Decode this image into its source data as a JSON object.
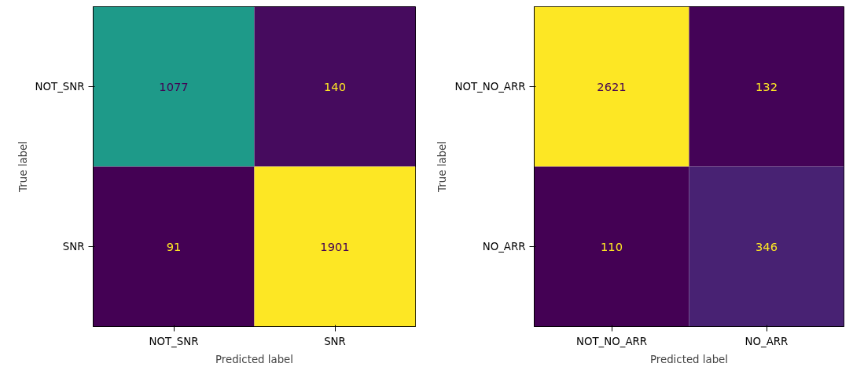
{
  "chart_data": [
    {
      "type": "heatmap",
      "xlabel": "Predicted label",
      "ylabel": "True label",
      "data_labels": true,
      "categories": [
        "NOT_SNR",
        "SNR"
      ],
      "y_categories": [
        "NOT_SNR",
        "SNR"
      ],
      "cells": [
        [
          1077,
          140
        ],
        [
          91,
          1901
        ]
      ]
    },
    {
      "type": "heatmap",
      "xlabel": "Predicted label",
      "ylabel": "True label",
      "data_labels": true,
      "categories": [
        "NOT_NO_ARR",
        "NO_ARR"
      ],
      "y_categories": [
        "NOT_NO_ARR",
        "NO_ARR"
      ],
      "cells": [
        [
          2621,
          132
        ],
        [
          110,
          346
        ]
      ]
    }
  ]
}
